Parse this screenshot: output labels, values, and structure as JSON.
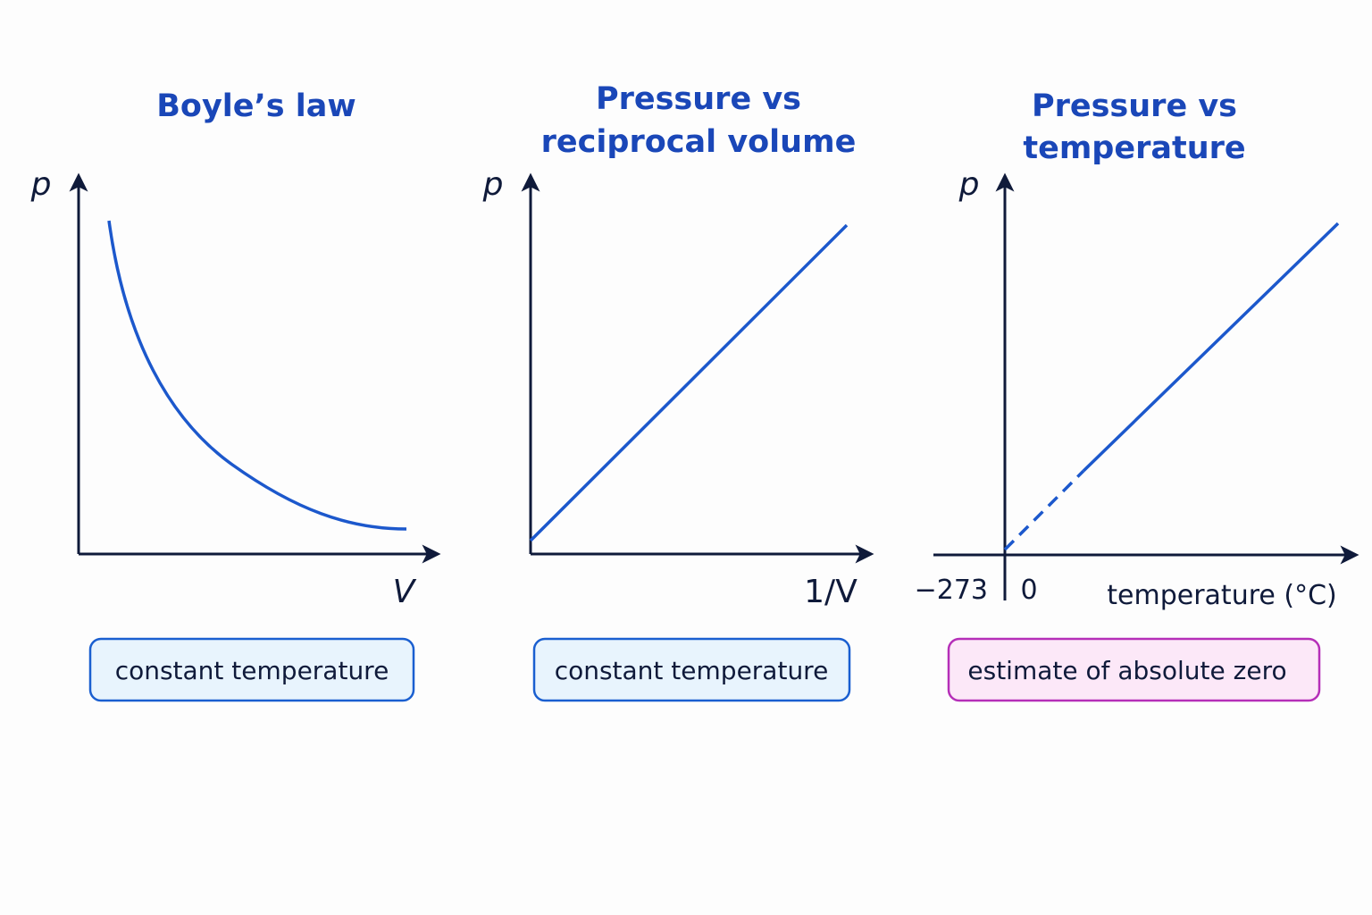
{
  "panels": [
    {
      "title": [
        "Boyle’s law"
      ],
      "y_label": "p",
      "x_label": "V",
      "note": "constant temperature"
    },
    {
      "title": [
        "Pressure vs",
        "reciprocal volume"
      ],
      "y_label": "p",
      "x_label": "1/V",
      "note": "constant temperature"
    },
    {
      "title": [
        "Pressure vs",
        "temperature"
      ],
      "y_label": "p",
      "x_label": "temperature (°C)",
      "x_tick_labels": [
        "−273",
        "0"
      ],
      "note": "estimate of absolute zero"
    }
  ]
}
